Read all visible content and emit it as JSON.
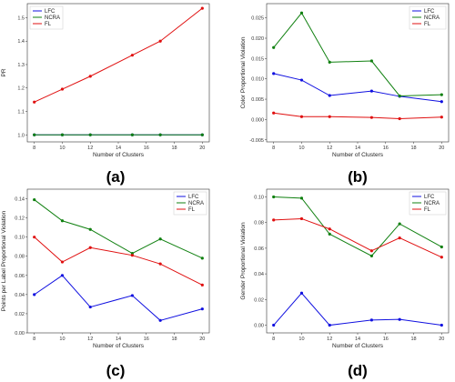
{
  "chart_data": [
    {
      "type": "line",
      "caption": "(a)",
      "xlabel": "Number of Clusters",
      "ylabel": "PR",
      "x": [
        8,
        10,
        12,
        15,
        17,
        20
      ],
      "xticks": [
        8,
        10,
        12,
        14,
        16,
        18,
        20
      ],
      "ylim": [
        0.97,
        1.56
      ],
      "yticks": [
        1.0,
        1.1,
        1.2,
        1.3,
        1.4,
        1.5
      ],
      "yformat": 1,
      "legend_position": "top-left",
      "series": [
        {
          "name": "LFC",
          "color": "#1010e0",
          "values": [
            1.0,
            1.0,
            1.0,
            1.0,
            1.0,
            1.0
          ]
        },
        {
          "name": "NCRA",
          "color": "#108010",
          "values": [
            1.0,
            1.0,
            1.0,
            1.0,
            1.0,
            1.0
          ]
        },
        {
          "name": "FL",
          "color": "#e01010",
          "values": [
            1.14,
            1.195,
            1.25,
            1.34,
            1.4,
            1.54
          ]
        }
      ]
    },
    {
      "type": "line",
      "caption": "(b)",
      "xlabel": "Number of Clusters",
      "ylabel": "Color Proportional Violation",
      "x": [
        8,
        10,
        12,
        15,
        17,
        20
      ],
      "xticks": [
        8,
        10,
        12,
        14,
        16,
        18,
        20
      ],
      "ylim": [
        -0.0055,
        0.0285
      ],
      "yticks": [
        -0.005,
        0.0,
        0.005,
        0.01,
        0.015,
        0.02,
        0.025
      ],
      "yformat": 3,
      "legend_position": "top-right",
      "series": [
        {
          "name": "LFC",
          "color": "#1010e0",
          "values": [
            0.0113,
            0.0097,
            0.0059,
            0.007,
            0.0057,
            0.0044
          ]
        },
        {
          "name": "NCRA",
          "color": "#108010",
          "values": [
            0.0177,
            0.0262,
            0.0141,
            0.0144,
            0.0058,
            0.0061
          ]
        },
        {
          "name": "FL",
          "color": "#e01010",
          "values": [
            0.0016,
            0.0007,
            0.0007,
            0.0005,
            0.0002,
            0.0006
          ]
        }
      ]
    },
    {
      "type": "line",
      "caption": "(c)",
      "xlabel": "Number of Clusters",
      "ylabel": "Points per Label Proportional Violation",
      "x": [
        8,
        10,
        12,
        15,
        17,
        20
      ],
      "xticks": [
        8,
        10,
        12,
        14,
        16,
        18,
        20
      ],
      "ylim": [
        0.0,
        0.15
      ],
      "yticks": [
        0.0,
        0.02,
        0.04,
        0.06,
        0.08,
        0.1,
        0.12,
        0.14
      ],
      "yformat": 2,
      "legend_position": "top-right",
      "series": [
        {
          "name": "LFC",
          "color": "#1010e0",
          "values": [
            0.04,
            0.06,
            0.027,
            0.039,
            0.013,
            0.025
          ]
        },
        {
          "name": "NCRA",
          "color": "#108010",
          "values": [
            0.139,
            0.117,
            0.108,
            0.083,
            0.098,
            0.078
          ]
        },
        {
          "name": "FL",
          "color": "#e01010",
          "values": [
            0.1,
            0.074,
            0.089,
            0.081,
            0.072,
            0.05
          ]
        }
      ]
    },
    {
      "type": "line",
      "caption": "(d)",
      "xlabel": "Number of Clusters",
      "ylabel": "Gender Proportional Violation",
      "x": [
        8,
        10,
        12,
        15,
        17,
        20
      ],
      "xticks": [
        8,
        10,
        12,
        14,
        16,
        18,
        20
      ],
      "ylim": [
        -0.006,
        0.106
      ],
      "yticks": [
        0.0,
        0.02,
        0.04,
        0.06,
        0.08,
        0.1
      ],
      "yformat": 2,
      "legend_position": "top-right",
      "series": [
        {
          "name": "LFC",
          "color": "#1010e0",
          "values": [
            0.0,
            0.025,
            0.0,
            0.004,
            0.0045,
            0.0
          ]
        },
        {
          "name": "NCRA",
          "color": "#108010",
          "values": [
            0.1,
            0.099,
            0.071,
            0.054,
            0.079,
            0.061
          ]
        },
        {
          "name": "FL",
          "color": "#e01010",
          "values": [
            0.082,
            0.083,
            0.075,
            0.058,
            0.068,
            0.053
          ]
        }
      ]
    }
  ]
}
